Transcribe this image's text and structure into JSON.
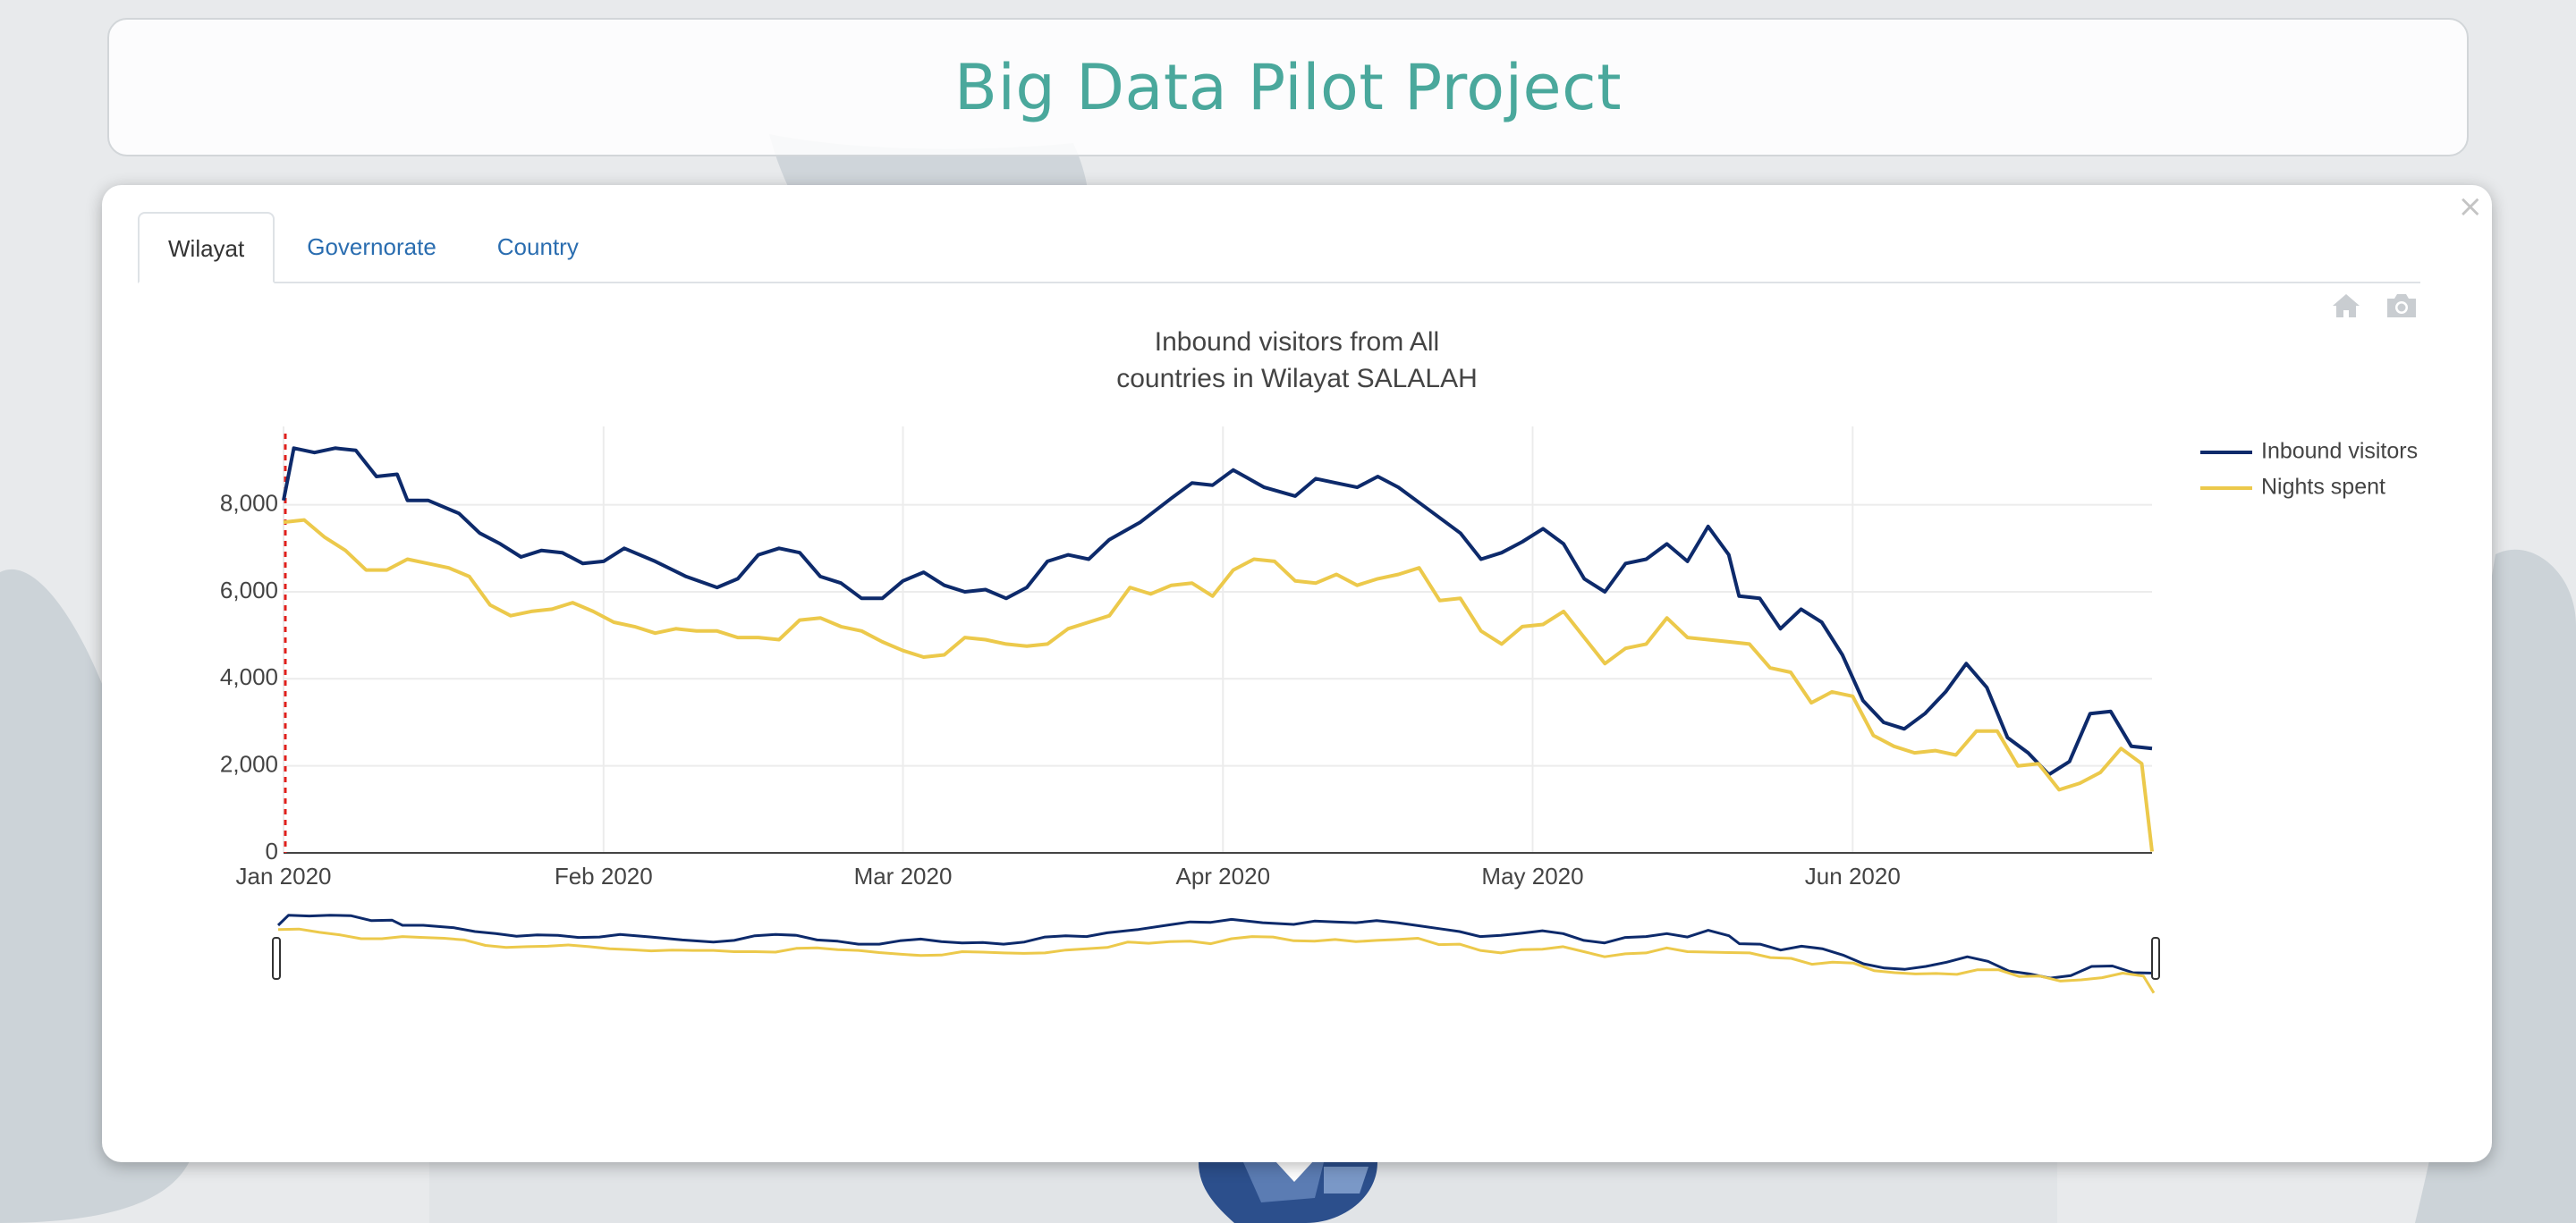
{
  "header": {
    "title": "Big Data Pilot Project"
  },
  "popup": {
    "close_label": "×",
    "tabs": [
      {
        "label": "Wilayat",
        "active": true
      },
      {
        "label": "Governorate",
        "active": false
      },
      {
        "label": "Country",
        "active": false
      }
    ],
    "modebar": [
      {
        "icon": "home-icon"
      },
      {
        "icon": "camera-icon"
      }
    ]
  },
  "colors": {
    "title": "#4aa89c",
    "inbound": "#0d2a6b",
    "nights": "#ecc94b",
    "tab_link": "#2a6db0",
    "marker": "#e0201c"
  },
  "chart_data": {
    "type": "line",
    "title_lines": [
      "Inbound visitors from All",
      "countries in Wilayat SALALAH"
    ],
    "xlabel": "",
    "ylabel": "",
    "x_start": "2020-01-01",
    "x_end": "2020-06-30",
    "xlim": [
      "2020-01-01",
      "2020-06-30"
    ],
    "ylim": [
      0,
      9800
    ],
    "x_ticks": [
      {
        "date": "2020-01-01",
        "label": "Jan 2020"
      },
      {
        "date": "2020-02-01",
        "label": "Feb 2020"
      },
      {
        "date": "2020-03-01",
        "label": "Mar 2020"
      },
      {
        "date": "2020-04-01",
        "label": "Apr 2020"
      },
      {
        "date": "2020-05-01",
        "label": "May 2020"
      },
      {
        "date": "2020-06-01",
        "label": "Jun 2020"
      }
    ],
    "y_ticks": [
      {
        "value": 0,
        "label": "0"
      },
      {
        "value": 2000,
        "label": "2,000"
      },
      {
        "value": 4000,
        "label": "4,000"
      },
      {
        "value": 6000,
        "label": "6,000"
      },
      {
        "value": 8000,
        "label": "8,000"
      }
    ],
    "grid": true,
    "legend_position": "top-right",
    "range_slider": true,
    "marker_date": "2020-01-01",
    "series": [
      {
        "name": "Inbound visitors",
        "color": "#0d2a6b",
        "points": [
          [
            "2020-01-01",
            8100
          ],
          [
            "2020-01-02",
            9300
          ],
          [
            "2020-01-04",
            9200
          ],
          [
            "2020-01-06",
            9300
          ],
          [
            "2020-01-08",
            9250
          ],
          [
            "2020-01-10",
            8650
          ],
          [
            "2020-01-12",
            8700
          ],
          [
            "2020-01-13",
            8100
          ],
          [
            "2020-01-15",
            8100
          ],
          [
            "2020-01-18",
            7800
          ],
          [
            "2020-01-20",
            7350
          ],
          [
            "2020-01-22",
            7100
          ],
          [
            "2020-01-24",
            6800
          ],
          [
            "2020-01-26",
            6950
          ],
          [
            "2020-01-28",
            6900
          ],
          [
            "2020-01-30",
            6650
          ],
          [
            "2020-02-01",
            6700
          ],
          [
            "2020-02-03",
            7000
          ],
          [
            "2020-02-06",
            6700
          ],
          [
            "2020-02-09",
            6350
          ],
          [
            "2020-02-12",
            6100
          ],
          [
            "2020-02-14",
            6300
          ],
          [
            "2020-02-16",
            6850
          ],
          [
            "2020-02-18",
            7000
          ],
          [
            "2020-02-20",
            6900
          ],
          [
            "2020-02-22",
            6350
          ],
          [
            "2020-02-24",
            6200
          ],
          [
            "2020-02-26",
            5850
          ],
          [
            "2020-02-28",
            5850
          ],
          [
            "2020-03-01",
            6250
          ],
          [
            "2020-03-03",
            6450
          ],
          [
            "2020-03-05",
            6150
          ],
          [
            "2020-03-07",
            6000
          ],
          [
            "2020-03-09",
            6050
          ],
          [
            "2020-03-11",
            5850
          ],
          [
            "2020-03-13",
            6100
          ],
          [
            "2020-03-15",
            6700
          ],
          [
            "2020-03-17",
            6850
          ],
          [
            "2020-03-19",
            6750
          ],
          [
            "2020-03-21",
            7200
          ],
          [
            "2020-03-24",
            7600
          ],
          [
            "2020-03-27",
            8150
          ],
          [
            "2020-03-29",
            8500
          ],
          [
            "2020-03-31",
            8450
          ],
          [
            "2020-04-02",
            8800
          ],
          [
            "2020-04-05",
            8400
          ],
          [
            "2020-04-08",
            8200
          ],
          [
            "2020-04-10",
            8600
          ],
          [
            "2020-04-12",
            8500
          ],
          [
            "2020-04-14",
            8400
          ],
          [
            "2020-04-16",
            8650
          ],
          [
            "2020-04-18",
            8400
          ],
          [
            "2020-04-20",
            8050
          ],
          [
            "2020-04-22",
            7700
          ],
          [
            "2020-04-24",
            7350
          ],
          [
            "2020-04-26",
            6750
          ],
          [
            "2020-04-28",
            6900
          ],
          [
            "2020-04-30",
            7150
          ],
          [
            "2020-05-02",
            7450
          ],
          [
            "2020-05-04",
            7100
          ],
          [
            "2020-05-06",
            6300
          ],
          [
            "2020-05-08",
            6000
          ],
          [
            "2020-05-10",
            6650
          ],
          [
            "2020-05-12",
            6750
          ],
          [
            "2020-05-14",
            7100
          ],
          [
            "2020-05-16",
            6700
          ],
          [
            "2020-05-18",
            7500
          ],
          [
            "2020-05-20",
            6850
          ],
          [
            "2020-05-21",
            5900
          ],
          [
            "2020-05-23",
            5850
          ],
          [
            "2020-05-25",
            5150
          ],
          [
            "2020-05-27",
            5600
          ],
          [
            "2020-05-29",
            5300
          ],
          [
            "2020-05-31",
            4550
          ],
          [
            "2020-06-02",
            3500
          ],
          [
            "2020-06-04",
            3000
          ],
          [
            "2020-06-06",
            2850
          ],
          [
            "2020-06-08",
            3200
          ],
          [
            "2020-06-10",
            3700
          ],
          [
            "2020-06-12",
            4350
          ],
          [
            "2020-06-14",
            3800
          ],
          [
            "2020-06-16",
            2650
          ],
          [
            "2020-06-18",
            2300
          ],
          [
            "2020-06-20",
            1800
          ],
          [
            "2020-06-22",
            2100
          ],
          [
            "2020-06-24",
            3200
          ],
          [
            "2020-06-26",
            3250
          ],
          [
            "2020-06-28",
            2450
          ],
          [
            "2020-06-30",
            2400
          ]
        ]
      },
      {
        "name": "Nights spent",
        "color": "#ecc94b",
        "points": [
          [
            "2020-01-01",
            7600
          ],
          [
            "2020-01-03",
            7650
          ],
          [
            "2020-01-05",
            7250
          ],
          [
            "2020-01-07",
            6950
          ],
          [
            "2020-01-09",
            6500
          ],
          [
            "2020-01-11",
            6500
          ],
          [
            "2020-01-13",
            6750
          ],
          [
            "2020-01-15",
            6650
          ],
          [
            "2020-01-17",
            6550
          ],
          [
            "2020-01-19",
            6350
          ],
          [
            "2020-01-21",
            5700
          ],
          [
            "2020-01-23",
            5450
          ],
          [
            "2020-01-25",
            5550
          ],
          [
            "2020-01-27",
            5600
          ],
          [
            "2020-01-29",
            5750
          ],
          [
            "2020-01-31",
            5550
          ],
          [
            "2020-02-02",
            5300
          ],
          [
            "2020-02-04",
            5200
          ],
          [
            "2020-02-06",
            5050
          ],
          [
            "2020-02-08",
            5150
          ],
          [
            "2020-02-10",
            5100
          ],
          [
            "2020-02-12",
            5100
          ],
          [
            "2020-02-14",
            4950
          ],
          [
            "2020-02-16",
            4950
          ],
          [
            "2020-02-18",
            4900
          ],
          [
            "2020-02-20",
            5350
          ],
          [
            "2020-02-22",
            5400
          ],
          [
            "2020-02-24",
            5200
          ],
          [
            "2020-02-26",
            5100
          ],
          [
            "2020-02-28",
            4850
          ],
          [
            "2020-03-01",
            4650
          ],
          [
            "2020-03-03",
            4500
          ],
          [
            "2020-03-05",
            4550
          ],
          [
            "2020-03-07",
            4950
          ],
          [
            "2020-03-09",
            4900
          ],
          [
            "2020-03-11",
            4800
          ],
          [
            "2020-03-13",
            4750
          ],
          [
            "2020-03-15",
            4800
          ],
          [
            "2020-03-17",
            5150
          ],
          [
            "2020-03-19",
            5300
          ],
          [
            "2020-03-21",
            5450
          ],
          [
            "2020-03-23",
            6100
          ],
          [
            "2020-03-25",
            5950
          ],
          [
            "2020-03-27",
            6150
          ],
          [
            "2020-03-29",
            6200
          ],
          [
            "2020-03-31",
            5900
          ],
          [
            "2020-04-02",
            6500
          ],
          [
            "2020-04-04",
            6750
          ],
          [
            "2020-04-06",
            6700
          ],
          [
            "2020-04-08",
            6250
          ],
          [
            "2020-04-10",
            6200
          ],
          [
            "2020-04-12",
            6400
          ],
          [
            "2020-04-14",
            6150
          ],
          [
            "2020-04-16",
            6300
          ],
          [
            "2020-04-18",
            6400
          ],
          [
            "2020-04-20",
            6550
          ],
          [
            "2020-04-22",
            5800
          ],
          [
            "2020-04-24",
            5850
          ],
          [
            "2020-04-26",
            5100
          ],
          [
            "2020-04-28",
            4800
          ],
          [
            "2020-04-30",
            5200
          ],
          [
            "2020-05-02",
            5250
          ],
          [
            "2020-05-04",
            5550
          ],
          [
            "2020-05-06",
            4950
          ],
          [
            "2020-05-08",
            4350
          ],
          [
            "2020-05-10",
            4700
          ],
          [
            "2020-05-12",
            4800
          ],
          [
            "2020-05-14",
            5400
          ],
          [
            "2020-05-16",
            4950
          ],
          [
            "2020-05-18",
            4900
          ],
          [
            "2020-05-20",
            4850
          ],
          [
            "2020-05-22",
            4800
          ],
          [
            "2020-05-24",
            4250
          ],
          [
            "2020-05-26",
            4150
          ],
          [
            "2020-05-28",
            3450
          ],
          [
            "2020-05-30",
            3700
          ],
          [
            "2020-06-01",
            3600
          ],
          [
            "2020-06-03",
            2700
          ],
          [
            "2020-06-05",
            2450
          ],
          [
            "2020-06-07",
            2300
          ],
          [
            "2020-06-09",
            2350
          ],
          [
            "2020-06-11",
            2250
          ],
          [
            "2020-06-13",
            2800
          ],
          [
            "2020-06-15",
            2800
          ],
          [
            "2020-06-17",
            2000
          ],
          [
            "2020-06-19",
            2050
          ],
          [
            "2020-06-21",
            1450
          ],
          [
            "2020-06-23",
            1600
          ],
          [
            "2020-06-25",
            1850
          ],
          [
            "2020-06-27",
            2400
          ],
          [
            "2020-06-29",
            2050
          ],
          [
            "2020-06-30",
            30
          ]
        ]
      }
    ]
  }
}
